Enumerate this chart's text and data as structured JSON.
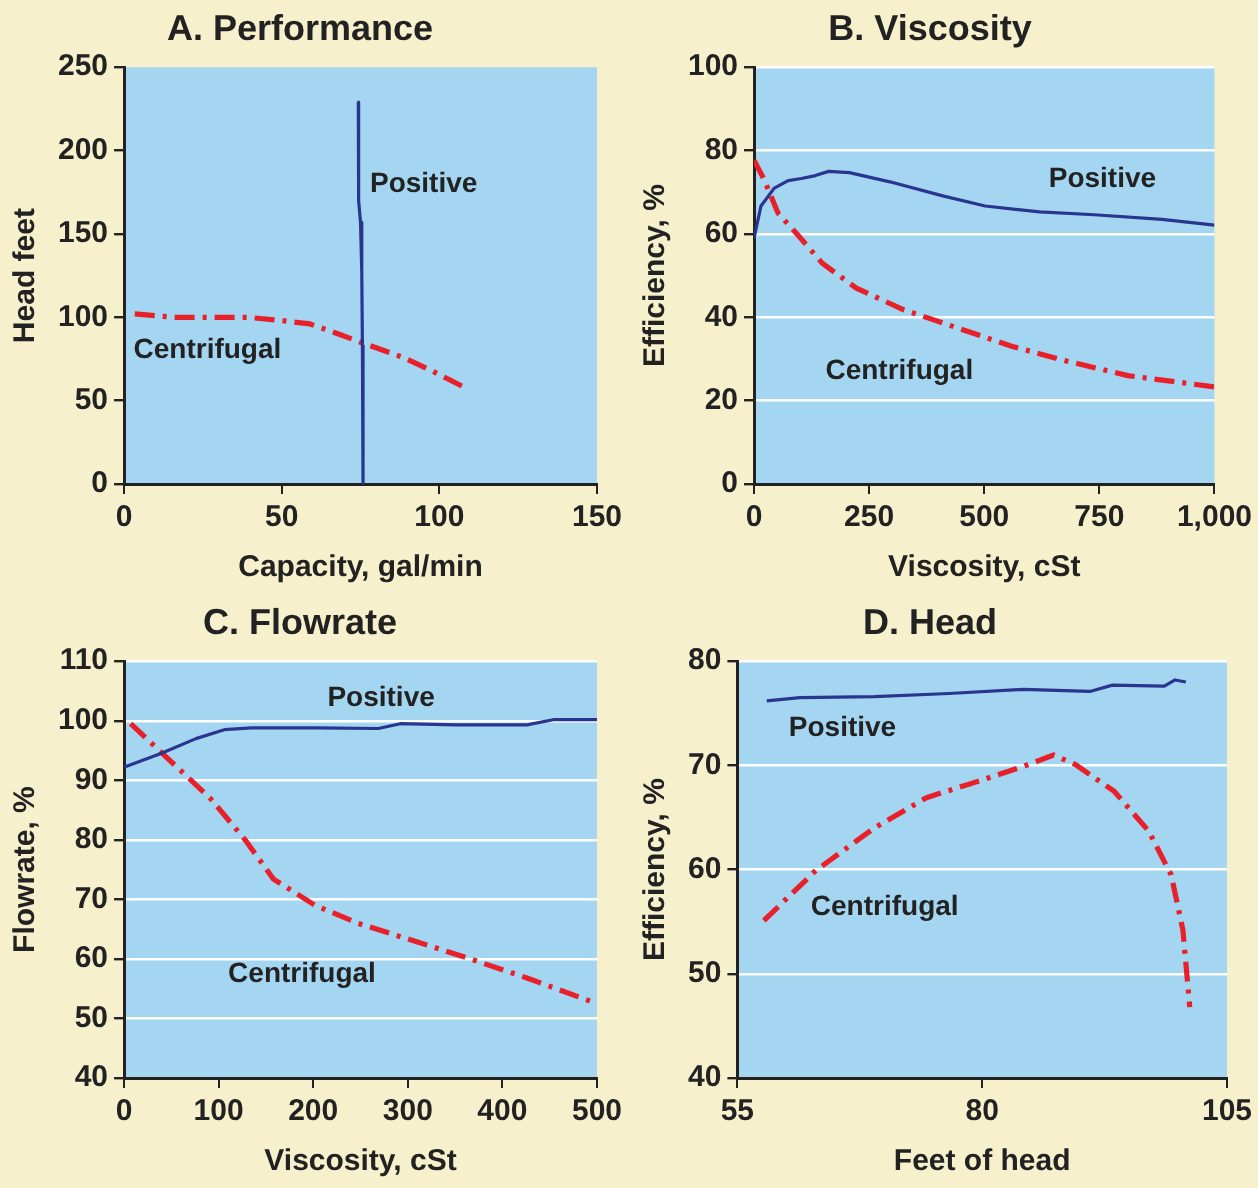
{
  "chart_data": [
    {
      "type": "line",
      "title": "A. Performance",
      "xlabel": "Capacity, gal/min",
      "ylabel": "Head feet",
      "xlim": [
        0,
        150
      ],
      "xticks": [
        0,
        50,
        100,
        150
      ],
      "ylim": [
        0,
        250
      ],
      "yticks": [
        0,
        50,
        100,
        150,
        200,
        250
      ],
      "grid": false,
      "legend": false,
      "series": [
        {
          "name": "Positive",
          "color": "#2a3590",
          "line_style": "solid",
          "x": [
            74.3,
            74.4,
            75,
            75.4,
            75.6,
            75.8
          ],
          "values": [
            229,
            170,
            157,
            127,
            83,
            0
          ]
        },
        {
          "name": "Centrifugal",
          "color": "#e8202a",
          "line_style": "dashed",
          "x": [
            3.4,
            16,
            39,
            50,
            59,
            68,
            75,
            88.5,
            97.5,
            109
          ],
          "values": [
            102,
            100,
            100,
            98,
            96,
            90,
            85,
            76,
            68,
            57
          ]
        }
      ]
    },
    {
      "type": "line",
      "title": "B. Viscosity",
      "xlabel": "Viscosity, cSt",
      "ylabel": "Efficiency, %",
      "xlim": [
        0,
        1000
      ],
      "xticks": [
        0,
        250,
        500,
        750,
        {
          "value": 1000,
          "label": "1,000"
        }
      ],
      "ylim": [
        0,
        100
      ],
      "yticks": [
        0,
        20,
        40,
        60,
        80,
        100
      ],
      "grid": "y",
      "legend": false,
      "series": [
        {
          "name": "Positive",
          "color": "#2a3590",
          "line_style": "solid",
          "x": [
            0,
            15,
            44,
            74,
            103,
            133,
            162,
            207,
            295,
            414,
            502,
            620,
            739,
            886,
            1000
          ],
          "values": [
            59,
            66.7,
            71,
            72.8,
            73.3,
            74,
            75,
            74.7,
            72.5,
            69,
            66.7,
            65.3,
            64.6,
            63.5,
            62.1
          ]
        },
        {
          "name": "Centrifugal",
          "color": "#e8202a",
          "line_style": "dashed",
          "x": [
            0,
            22,
            52,
            89,
            148,
            222,
            325,
            443,
            561,
            679,
            812,
            1000
          ],
          "values": [
            77.7,
            73,
            65,
            60.5,
            53,
            47,
            41.8,
            37.4,
            33,
            29.5,
            26,
            23.3
          ]
        }
      ]
    },
    {
      "type": "line",
      "title": "C. Flowrate",
      "xlabel": "Viscosity, cSt",
      "ylabel": "Flowrate, %",
      "xlim": [
        0,
        500
      ],
      "xticks": [
        0,
        100,
        200,
        300,
        400,
        500
      ],
      "ylim": [
        40,
        110
      ],
      "yticks": [
        40,
        50,
        60,
        70,
        80,
        90,
        100,
        110
      ],
      "grid": "y",
      "legend": false,
      "series": [
        {
          "name": "Positive",
          "color": "#2a3590",
          "line_style": "solid",
          "x": [
            0,
            39,
            76,
            106,
            135,
            202,
            269,
            292,
            351,
            426,
            455,
            500
          ],
          "values": [
            92.2,
            94.5,
            97,
            98.5,
            98.8,
            98.8,
            98.7,
            99.5,
            99.3,
            99.3,
            100.2,
            100.2
          ]
        },
        {
          "name": "Centrifugal",
          "color": "#e8202a",
          "line_style": "dashed",
          "x": [
            7,
            54,
            91,
            128,
            158,
            202,
            247,
            307,
            366,
            426,
            500
          ],
          "values": [
            99.5,
            92.5,
            87,
            80,
            73.4,
            69,
            66,
            63,
            60,
            56.8,
            52.5
          ]
        }
      ]
    },
    {
      "type": "line",
      "title": "D. Head",
      "xlabel": "Feet of head",
      "ylabel": "Efficiency, %",
      "xlim": [
        55,
        105
      ],
      "xticks": [
        55,
        80,
        105
      ],
      "ylim": [
        40,
        80
      ],
      "yticks": [
        40,
        50,
        60,
        70,
        80
      ],
      "grid": "y",
      "legend": false,
      "series": [
        {
          "name": "Positive",
          "color": "#2a3590",
          "line_style": "solid",
          "x": [
            58,
            61.4,
            69,
            76.6,
            84.2,
            91,
            93.3,
            98.6,
            99.7,
            100.8
          ],
          "values": [
            76.2,
            76.5,
            76.6,
            76.9,
            77.3,
            77.1,
            77.7,
            77.6,
            78.2,
            78
          ]
        },
        {
          "name": "Centrifugal",
          "color": "#e8202a",
          "line_style": "dashed",
          "x": [
            57.7,
            63,
            69,
            74.3,
            79,
            84.2,
            87.3,
            89.5,
            93.5,
            97,
            99.3,
            100.5,
            101.2
          ],
          "values": [
            55.1,
            59.9,
            64,
            66.9,
            68.3,
            69.9,
            71,
            70.1,
            67.5,
            63.7,
            59.5,
            54.2,
            46.8
          ]
        }
      ]
    }
  ]
}
